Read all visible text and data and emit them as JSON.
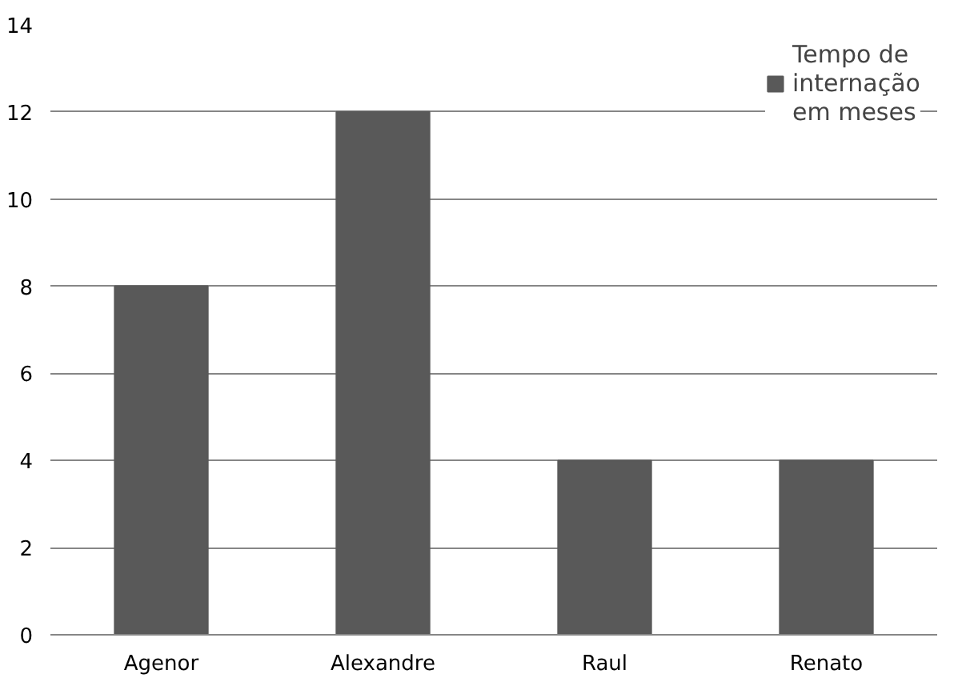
{
  "chart_data": {
    "type": "bar",
    "categories": [
      "Agenor",
      "Alexandre",
      "Raul",
      "Renato"
    ],
    "series": [
      {
        "name": "Tempo de internação em meses",
        "color": "#595959",
        "values": [
          8,
          12,
          4,
          4
        ]
      }
    ],
    "ylim": [
      0,
      14
    ],
    "yticks": [
      0,
      2,
      4,
      6,
      8,
      10,
      12,
      14
    ],
    "grid": "y",
    "legend": "top right"
  }
}
